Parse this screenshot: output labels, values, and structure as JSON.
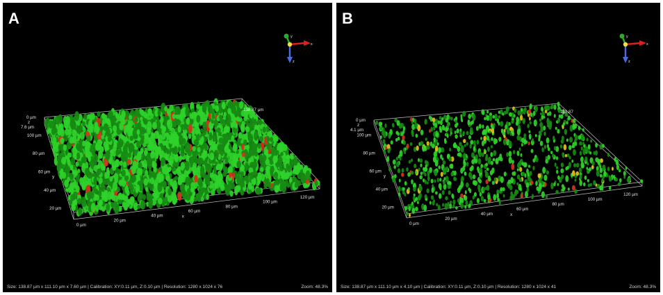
{
  "panels": [
    {
      "letter": "A",
      "status": "Size: 138.87 µm x 111.10 µm x 7.60 µm | Calibration: XY:0.11 µm, Z:0.10 µm | Resolution: 1280 x 1024 x 76",
      "zoom": "Zoom: 48.3%",
      "z_top_label": "0 µm",
      "z_axis_label": "z",
      "z_depth_label": "7.6 µm",
      "y_ticks": [
        "100 µm",
        "80 µm",
        "60 µm",
        "40 µm",
        "20 µm"
      ],
      "y_axis_label": "y",
      "x_ticks": [
        "0 µm",
        "20 µm",
        "40 µm",
        "60 µm",
        "80 µm",
        "100 µm",
        "120 µm"
      ],
      "x_axis_label": "x",
      "x_end_label": "138.87 µm",
      "density": "high"
    },
    {
      "letter": "B",
      "status": "Size: 138.87 µm x 111.10 µm x 4.10 µm | Calibration: XY:0.11 µm, Z:0.10 µm | Resolution: 1280 x 1024 x 41",
      "zoom": "Zoom: 48.3%",
      "z_top_label": "0 µm",
      "z_axis_label": "z",
      "z_depth_label": "4.1 µm",
      "y_ticks": [
        "100 µm",
        "80 µm",
        "60 µm",
        "40 µm",
        "20 µm"
      ],
      "y_axis_label": "y",
      "x_ticks": [
        "0 µm",
        "20 µm",
        "40 µm",
        "60 µm",
        "80 µm",
        "100 µm",
        "120 µm"
      ],
      "x_axis_label": "x",
      "x_end_label": "138.87",
      "density": "low"
    }
  ],
  "gizmo": {
    "y": "y",
    "x": "x",
    "z": "z"
  },
  "colors": {
    "green": "#2fd12a",
    "green_dark": "#178a14",
    "red": "#d8301c",
    "yellow": "#e6c020",
    "box": "#bfbfbf",
    "bg": "#000000",
    "gizmo_x": "#e02020",
    "gizmo_y": "#2ea82e",
    "gizmo_z": "#4a6ae0",
    "gizmo_center": "#f0e040"
  }
}
